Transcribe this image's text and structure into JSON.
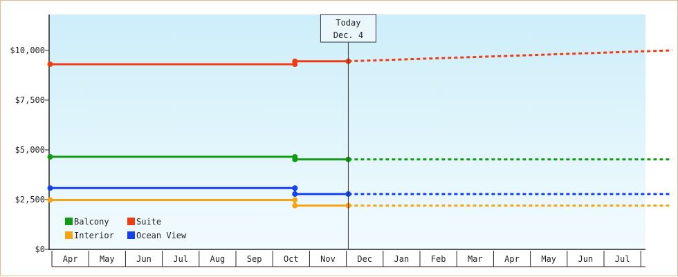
{
  "chart_data": {
    "type": "line",
    "title": "",
    "xlabel": "",
    "ylabel": "",
    "ylim": [
      0,
      11800
    ],
    "y_ticks": [
      0,
      2500,
      5000,
      7500,
      10000
    ],
    "y_tick_labels": [
      "$0",
      "$2,500",
      "$5,000",
      "$7,500",
      "$10,000"
    ],
    "x_tick_labels": [
      "Apr",
      "May",
      "Jun",
      "Jul",
      "Aug",
      "Sep",
      "Oct",
      "Nov",
      "Dec",
      "Jan",
      "Feb",
      "Mar",
      "Apr",
      "May",
      "Jun",
      "Jul"
    ],
    "today_marker": {
      "line1": "Today",
      "line2": "Dec. 4",
      "month_index": 8.1
    },
    "legend_position": "bottom-left",
    "series": [
      {
        "name": "Suite",
        "color": "#f03c14",
        "actual": [
          [
            0,
            9300
          ],
          [
            6.65,
            9300
          ],
          [
            6.65,
            9450
          ],
          [
            8.1,
            9450
          ]
        ],
        "forecast": [
          [
            8.1,
            9450
          ],
          [
            16.9,
            10000
          ]
        ]
      },
      {
        "name": "Balcony",
        "color": "#0f9b14",
        "actual": [
          [
            0,
            4650
          ],
          [
            6.65,
            4650
          ],
          [
            6.65,
            4520
          ],
          [
            8.1,
            4520
          ]
        ],
        "forecast": [
          [
            8.1,
            4520
          ],
          [
            16.9,
            4520
          ]
        ]
      },
      {
        "name": "Ocean View",
        "color": "#1440f0",
        "actual": [
          [
            0,
            3080
          ],
          [
            6.65,
            3080
          ],
          [
            6.65,
            2780
          ],
          [
            8.1,
            2780
          ]
        ],
        "forecast": [
          [
            8.1,
            2780
          ],
          [
            16.9,
            2780
          ]
        ]
      },
      {
        "name": "Interior",
        "color": "#f5a514",
        "actual": [
          [
            0,
            2480
          ],
          [
            6.65,
            2480
          ],
          [
            6.65,
            2200
          ],
          [
            8.1,
            2200
          ]
        ],
        "forecast": [
          [
            8.1,
            2200
          ],
          [
            16.9,
            2200
          ]
        ]
      }
    ],
    "legend": [
      {
        "name": "Balcony",
        "color": "#0f9b14"
      },
      {
        "name": "Suite",
        "color": "#f03c14"
      },
      {
        "name": "Interior",
        "color": "#f5a514"
      },
      {
        "name": "Ocean View",
        "color": "#1440f0"
      }
    ]
  }
}
